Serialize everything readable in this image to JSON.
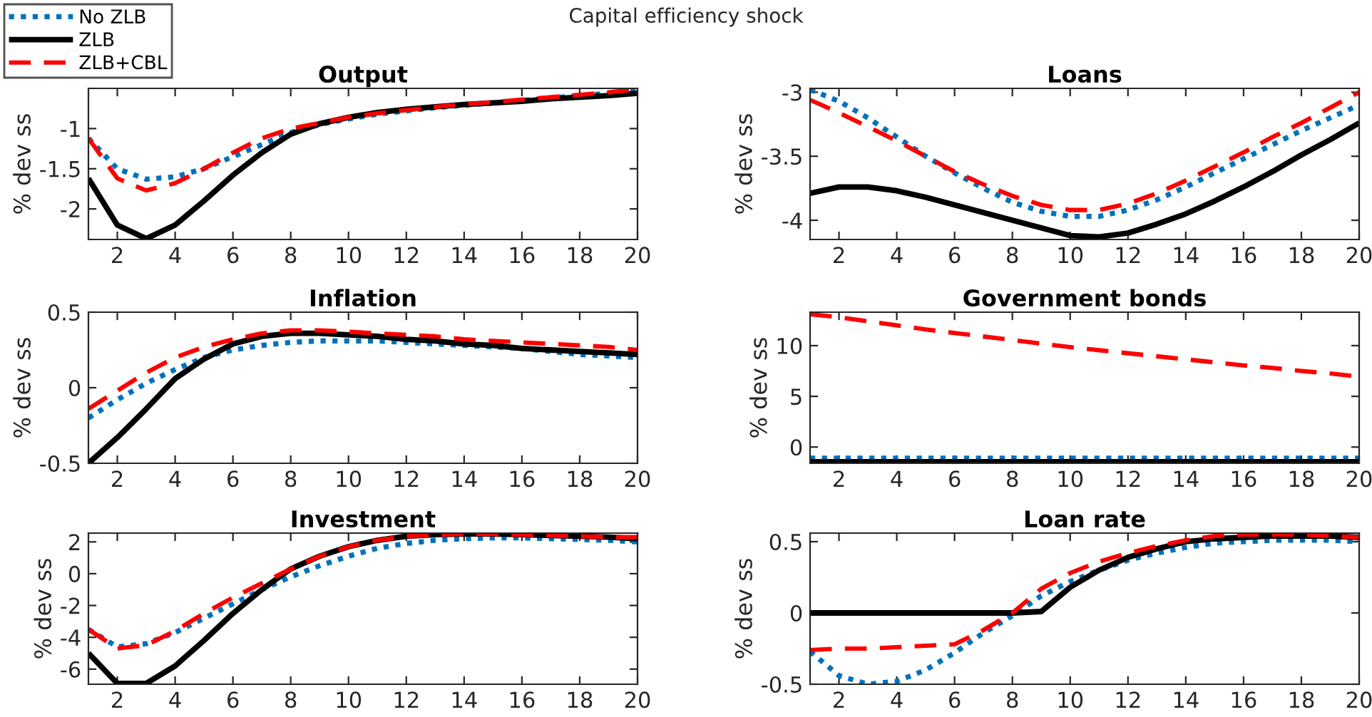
{
  "chart_data": [
    {
      "type": "line",
      "title": "Output",
      "ylabel": "% dev ss",
      "annotations": [
        "Capital efficiency shock"
      ],
      "legend": "top left",
      "grid": false,
      "x": [
        1,
        2,
        3,
        4,
        5,
        6,
        7,
        8,
        9,
        10,
        11,
        12,
        13,
        14,
        15,
        16,
        17,
        18,
        19,
        20
      ],
      "xlim": [
        1,
        20
      ],
      "xticks": [
        2,
        4,
        6,
        8,
        10,
        12,
        14,
        16,
        18,
        20
      ],
      "ylim": [
        -2.38,
        -0.5
      ],
      "yticks": [
        -2,
        -1.5,
        -1
      ],
      "series": [
        {
          "name": "No ZLB",
          "color": "#0072bd",
          "line_style": "dotted",
          "values": [
            -1.12,
            -1.5,
            -1.63,
            -1.6,
            -1.5,
            -1.35,
            -1.2,
            -1.05,
            -0.95,
            -0.88,
            -0.82,
            -0.78,
            -0.74,
            -0.71,
            -0.68,
            -0.65,
            -0.62,
            -0.59,
            -0.56,
            -0.52
          ]
        },
        {
          "name": "ZLB",
          "color": "#000000",
          "line_style": "solid",
          "values": [
            -1.62,
            -2.2,
            -2.37,
            -2.2,
            -1.9,
            -1.58,
            -1.3,
            -1.07,
            -0.94,
            -0.86,
            -0.8,
            -0.76,
            -0.73,
            -0.7,
            -0.68,
            -0.66,
            -0.63,
            -0.61,
            -0.59,
            -0.56
          ]
        },
        {
          "name": "ZLB+CBL",
          "color": "#ff0000",
          "line_style": "dashed",
          "values": [
            -1.12,
            -1.62,
            -1.77,
            -1.68,
            -1.5,
            -1.3,
            -1.12,
            -1.0,
            -0.93,
            -0.86,
            -0.81,
            -0.77,
            -0.73,
            -0.7,
            -0.67,
            -0.64,
            -0.61,
            -0.58,
            -0.55,
            -0.51
          ]
        }
      ]
    },
    {
      "type": "line",
      "title": "Loans",
      "ylabel": "% dev ss",
      "grid": false,
      "x": [
        1,
        2,
        3,
        4,
        5,
        6,
        7,
        8,
        9,
        10,
        11,
        12,
        13,
        14,
        15,
        16,
        17,
        18,
        19,
        20
      ],
      "xlim": [
        1,
        20
      ],
      "xticks": [
        2,
        4,
        6,
        8,
        10,
        12,
        14,
        16,
        18,
        20
      ],
      "ylim": [
        -4.15,
        -2.97
      ],
      "yticks": [
        -4,
        -3.5,
        -3
      ],
      "series": [
        {
          "color": "#0072bd",
          "line_style": "dotted",
          "values": [
            -2.98,
            -3.07,
            -3.2,
            -3.35,
            -3.5,
            -3.63,
            -3.75,
            -3.86,
            -3.93,
            -3.97,
            -3.97,
            -3.92,
            -3.84,
            -3.74,
            -3.63,
            -3.52,
            -3.41,
            -3.3,
            -3.2,
            -3.1
          ]
        },
        {
          "color": "#000000",
          "line_style": "solid",
          "values": [
            -3.79,
            -3.74,
            -3.74,
            -3.77,
            -3.82,
            -3.88,
            -3.94,
            -4.0,
            -4.06,
            -4.12,
            -4.13,
            -4.1,
            -4.03,
            -3.95,
            -3.85,
            -3.74,
            -3.62,
            -3.49,
            -3.37,
            -3.24
          ]
        },
        {
          "color": "#ff0000",
          "line_style": "dashed",
          "values": [
            -3.06,
            -3.16,
            -3.27,
            -3.38,
            -3.5,
            -3.62,
            -3.72,
            -3.81,
            -3.88,
            -3.92,
            -3.92,
            -3.87,
            -3.79,
            -3.69,
            -3.58,
            -3.47,
            -3.35,
            -3.24,
            -3.12,
            -3.0
          ]
        }
      ]
    },
    {
      "type": "line",
      "title": "Inflation",
      "ylabel": "% dev ss",
      "grid": false,
      "x": [
        1,
        2,
        3,
        4,
        5,
        6,
        7,
        8,
        9,
        10,
        11,
        12,
        13,
        14,
        15,
        16,
        17,
        18,
        19,
        20
      ],
      "xlim": [
        1,
        20
      ],
      "xticks": [
        2,
        4,
        6,
        8,
        10,
        12,
        14,
        16,
        18,
        20
      ],
      "ylim": [
        -0.5,
        0.5
      ],
      "yticks": [
        -0.5,
        0,
        0.5
      ],
      "series": [
        {
          "color": "#0072bd",
          "line_style": "dotted",
          "values": [
            -0.2,
            -0.08,
            0.03,
            0.12,
            0.2,
            0.25,
            0.28,
            0.3,
            0.31,
            0.31,
            0.31,
            0.3,
            0.29,
            0.28,
            0.27,
            0.26,
            0.24,
            0.22,
            0.21,
            0.2
          ]
        },
        {
          "color": "#000000",
          "line_style": "solid",
          "values": [
            -0.5,
            -0.33,
            -0.14,
            0.06,
            0.19,
            0.29,
            0.34,
            0.36,
            0.36,
            0.35,
            0.34,
            0.32,
            0.31,
            0.29,
            0.28,
            0.26,
            0.25,
            0.24,
            0.23,
            0.22
          ]
        },
        {
          "color": "#ff0000",
          "line_style": "dashed",
          "values": [
            -0.14,
            -0.02,
            0.1,
            0.2,
            0.27,
            0.32,
            0.36,
            0.38,
            0.38,
            0.37,
            0.36,
            0.35,
            0.34,
            0.32,
            0.31,
            0.3,
            0.29,
            0.28,
            0.27,
            0.25
          ]
        }
      ]
    },
    {
      "type": "line",
      "title": "Government bonds",
      "ylabel": "% dev ss",
      "grid": false,
      "x": [
        1,
        2,
        3,
        4,
        5,
        6,
        7,
        8,
        9,
        10,
        11,
        12,
        13,
        14,
        15,
        16,
        17,
        18,
        19,
        20
      ],
      "xlim": [
        1,
        20
      ],
      "xticks": [
        2,
        4,
        6,
        8,
        10,
        12,
        14,
        16,
        18,
        20
      ],
      "ylim": [
        -1.6,
        13.3
      ],
      "yticks": [
        0,
        5,
        10
      ],
      "series": [
        {
          "color": "#0072bd",
          "line_style": "dotted",
          "values": [
            -1.1,
            -1.1,
            -1.1,
            -1.1,
            -1.1,
            -1.1,
            -1.1,
            -1.1,
            -1.1,
            -1.1,
            -1.1,
            -1.1,
            -1.1,
            -1.1,
            -1.1,
            -1.1,
            -1.1,
            -1.1,
            -1.1,
            -1.1
          ]
        },
        {
          "color": "#000000",
          "line_style": "solid",
          "values": [
            -1.45,
            -1.45,
            -1.45,
            -1.45,
            -1.45,
            -1.45,
            -1.45,
            -1.45,
            -1.45,
            -1.45,
            -1.45,
            -1.45,
            -1.45,
            -1.45,
            -1.45,
            -1.45,
            -1.45,
            -1.45,
            -1.45,
            -1.45
          ]
        },
        {
          "color": "#ff0000",
          "line_style": "dashed",
          "values": [
            13.1,
            12.8,
            12.4,
            12.0,
            11.6,
            11.25,
            10.9,
            10.55,
            10.2,
            9.85,
            9.55,
            9.25,
            8.95,
            8.65,
            8.35,
            8.05,
            7.8,
            7.5,
            7.25,
            6.95
          ]
        }
      ]
    },
    {
      "type": "line",
      "title": "Investment",
      "ylabel": "% dev ss",
      "grid": false,
      "x": [
        1,
        2,
        3,
        4,
        5,
        6,
        7,
        8,
        9,
        10,
        11,
        12,
        13,
        14,
        15,
        16,
        17,
        18,
        19,
        20
      ],
      "xlim": [
        1,
        20
      ],
      "xticks": [
        2,
        4,
        6,
        8,
        10,
        12,
        14,
        16,
        18,
        20
      ],
      "ylim": [
        -6.95,
        2.55
      ],
      "yticks": [
        -6,
        -4,
        -2,
        0,
        2
      ],
      "series": [
        {
          "color": "#0072bd",
          "line_style": "dotted",
          "values": [
            -3.5,
            -4.6,
            -4.4,
            -3.7,
            -2.8,
            -1.9,
            -1.0,
            -0.2,
            0.5,
            1.1,
            1.6,
            1.9,
            2.1,
            2.2,
            2.25,
            2.25,
            2.2,
            2.15,
            2.1,
            2.0
          ]
        },
        {
          "color": "#000000",
          "line_style": "solid",
          "values": [
            -5.0,
            -6.9,
            -6.9,
            -5.8,
            -4.2,
            -2.5,
            -1.0,
            0.3,
            1.1,
            1.7,
            2.1,
            2.35,
            2.45,
            2.5,
            2.5,
            2.45,
            2.4,
            2.35,
            2.3,
            2.2
          ]
        },
        {
          "color": "#ff0000",
          "line_style": "dashed",
          "values": [
            -3.5,
            -4.7,
            -4.5,
            -3.6,
            -2.5,
            -1.5,
            -0.6,
            0.3,
            1.1,
            1.7,
            2.1,
            2.35,
            2.45,
            2.5,
            2.5,
            2.45,
            2.4,
            2.35,
            2.3,
            2.3
          ]
        }
      ]
    },
    {
      "type": "line",
      "title": "Loan rate",
      "ylabel": "% dev ss",
      "grid": false,
      "x": [
        1,
        2,
        3,
        4,
        5,
        6,
        7,
        8,
        9,
        10,
        11,
        12,
        13,
        14,
        15,
        16,
        17,
        18,
        19,
        20
      ],
      "xlim": [
        1,
        20
      ],
      "xticks": [
        2,
        4,
        6,
        8,
        10,
        12,
        14,
        16,
        18,
        20
      ],
      "ylim": [
        -0.5,
        0.56
      ],
      "yticks": [
        -0.5,
        0,
        0.5
      ],
      "series": [
        {
          "color": "#0072bd",
          "line_style": "dotted",
          "values": [
            -0.27,
            -0.44,
            -0.5,
            -0.48,
            -0.4,
            -0.28,
            -0.14,
            -0.02,
            0.12,
            0.22,
            0.3,
            0.37,
            0.42,
            0.46,
            0.49,
            0.5,
            0.51,
            0.51,
            0.51,
            0.5
          ]
        },
        {
          "color": "#000000",
          "line_style": "solid",
          "values": [
            0,
            0,
            0,
            0,
            0,
            0,
            0,
            0,
            0.01,
            0.18,
            0.3,
            0.39,
            0.45,
            0.5,
            0.52,
            0.53,
            0.54,
            0.54,
            0.54,
            0.53
          ]
        },
        {
          "color": "#ff0000",
          "line_style": "dashed",
          "values": [
            -0.26,
            -0.25,
            -0.25,
            -0.24,
            -0.23,
            -0.22,
            -0.12,
            0.0,
            0.17,
            0.28,
            0.36,
            0.42,
            0.47,
            0.51,
            0.54,
            0.55,
            0.55,
            0.55,
            0.54,
            0.53
          ]
        }
      ]
    }
  ]
}
